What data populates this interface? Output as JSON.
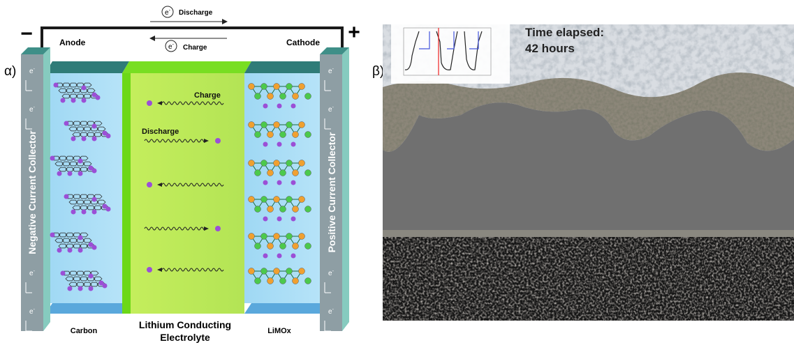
{
  "panel_a": {
    "label": "α)",
    "minus": "−",
    "plus": "+",
    "electron": "e",
    "electron_charge": "-",
    "top_discharge": "Discharge",
    "top_charge": "Charge",
    "anode": "Anode",
    "cathode": "Cathode",
    "negative_collector": "Negative Current Collector",
    "positive_collector": "Positive Current Collector",
    "inner_charge": "Charge",
    "inner_discharge": "Discharge",
    "carbon": "Carbon",
    "electrolyte_line1": "Lithium Conducting",
    "electrolyte_line2": "Electrolyte",
    "limox": "LiMOx"
  },
  "panel_b": {
    "label": "β)",
    "time_label": "Time elapsed:",
    "time_value": "42 hours"
  }
}
